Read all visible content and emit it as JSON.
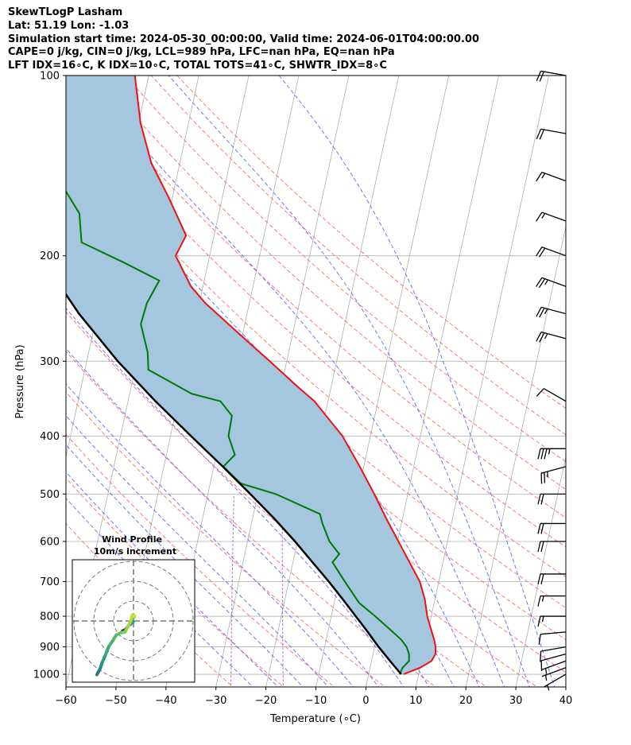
{
  "header": {
    "line1": "SkewTLogP Lasham",
    "line2": "Lat: 51.19   Lon: -1.03",
    "line3": "Simulation start time: 2024-05-30_00:00:00, Valid time: 2024-06-01T04:00:00.00",
    "line4": "CAPE=0 j/kg, CIN=0 j/kg, LCL=989 hPa, LFC=nan hPa, EQ=nan hPa",
    "line5": "LFT IDX=16∘C, K IDX=10∘C, TOTAL TOTS=41∘C, SHWTR_IDX=8∘C"
  },
  "chart_data": [
    {
      "type": "line",
      "subtype": "skewt-logp",
      "xlabel": "Temperature (∘C)",
      "ylabel": "Pressure (hPa)",
      "xlim": [
        -60,
        40
      ],
      "ylim": [
        1050,
        100
      ],
      "y_scale": "log",
      "x_ticks": [
        "−60",
        "−50",
        "−40",
        "−30",
        "−20",
        "−10",
        "0",
        "10",
        "20",
        "30",
        "40"
      ],
      "y_ticks": [
        "100",
        "200",
        "300",
        "400",
        "500",
        "600",
        "700",
        "800",
        "900",
        "1000"
      ],
      "grid": true,
      "colors": {
        "temperature": "#ee1111",
        "dewpoint": "#007a00",
        "parcel": "#000000",
        "shade": "#a4c7df",
        "dry_adiabat": "#ff6060",
        "moist_adiabat": "#5a5aff",
        "mixing_ratio": "#b070d8",
        "isotherm": "#b0b0b0"
      },
      "series": [
        {
          "role": "temperature",
          "p": [
            1000,
            975,
            950,
            925,
            900,
            875,
            850,
            800,
            750,
            700,
            650,
            600,
            550,
            500,
            450,
            400,
            350,
            330,
            300,
            280,
            260,
            240,
            225,
            200,
            185,
            160,
            140,
            120,
            100
          ],
          "t": [
            7,
            10,
            12,
            12.5,
            12.2,
            11.6,
            10.8,
            9.2,
            8.0,
            6.2,
            3.3,
            0.2,
            -3.2,
            -6.7,
            -10.8,
            -15.6,
            -22.7,
            -26.9,
            -33.4,
            -38.2,
            -43.3,
            -48.8,
            -52.4,
            -56.8,
            -55.6,
            -60.7,
            -65.7,
            -69.6,
            -72.8
          ]
        },
        {
          "role": "dewpoint",
          "p": [
            1000,
            975,
            950,
            925,
            900,
            875,
            850,
            800,
            760,
            700,
            650,
            630,
            600,
            560,
            540,
            500,
            480,
            450,
            430,
            400,
            370,
            350,
            340,
            310,
            290,
            260,
            240,
            220,
            205,
            190,
            170,
            100
          ],
          "t": [
            6.2,
            6.5,
            7.5,
            7.2,
            6.4,
            5.0,
            3.0,
            -1.2,
            -5.0,
            -8.8,
            -12.1,
            -11.1,
            -13.6,
            -15.8,
            -16.7,
            -26.4,
            -33.9,
            -38.1,
            -36.3,
            -38.4,
            -38.6,
            -41.5,
            -47.6,
            -57.3,
            -58.2,
            -60.8,
            -60.5,
            -59.0,
            -67.0,
            -76.2,
            -77.9,
            -100.7
          ]
        },
        {
          "role": "parcel",
          "p": [
            1000,
            950,
            900,
            850,
            800,
            750,
            700,
            650,
            600,
            550,
            500,
            450,
            400,
            350,
            300,
            250,
            200,
            150,
            100
          ],
          "t": [
            6.5,
            3.7,
            0.8,
            -2.0,
            -5.1,
            -8.4,
            -12.0,
            -16.1,
            -20.5,
            -25.6,
            -31.5,
            -38.2,
            -45.9,
            -54.5,
            -63.8,
            -73.6,
            -84.0,
            -96.0,
            -111.0
          ]
        }
      ],
      "wind_barbs": {
        "p": [
          100,
          125,
          150,
          175,
          200,
          225,
          250,
          275,
          350,
          420,
          450,
          500,
          560,
          600,
          680,
          740,
          800,
          850,
          900,
          925,
          950,
          975,
          1000
        ],
        "speed_kt": [
          20,
          20,
          15,
          15,
          20,
          25,
          25,
          25,
          10,
          35,
          25,
          20,
          20,
          20,
          20,
          15,
          15,
          10,
          10,
          10,
          5,
          5,
          5
        ],
        "direction_deg": [
          280,
          280,
          290,
          290,
          290,
          290,
          285,
          285,
          300,
          270,
          255,
          270,
          270,
          270,
          270,
          270,
          270,
          265,
          260,
          255,
          250,
          250,
          240
        ]
      }
    },
    {
      "type": "line",
      "subtype": "hodograph",
      "title": "Wind Profile",
      "subtitle": "10m/s increment",
      "rings_ms": [
        10,
        20,
        30
      ],
      "u": [
        -5.5,
        -4.2,
        -3.1,
        -2.3,
        -1.4,
        -0.9,
        -0.4,
        -0.2,
        -0.6,
        -0.2,
        0.4,
        -0.2,
        -0.7,
        0.5,
        -0.5,
        -1.8,
        -4.2,
        -6.5,
        -8.6,
        -10.5,
        -12.5,
        -14.5,
        -15.8,
        -16.8,
        -17.9,
        -18.4
      ],
      "v": [
        -5.0,
        -4.5,
        -3.2,
        -2.1,
        -1.6,
        -0.8,
        -0.6,
        -0.4,
        1.0,
        1.5,
        2.2,
        2.8,
        2.2,
        2.7,
        3.0,
        -1.0,
        -5.5,
        -6.0,
        -7.0,
        -10.0,
        -13.0,
        -18.0,
        -21.0,
        -24.0,
        -26.0,
        -27.0
      ]
    }
  ]
}
